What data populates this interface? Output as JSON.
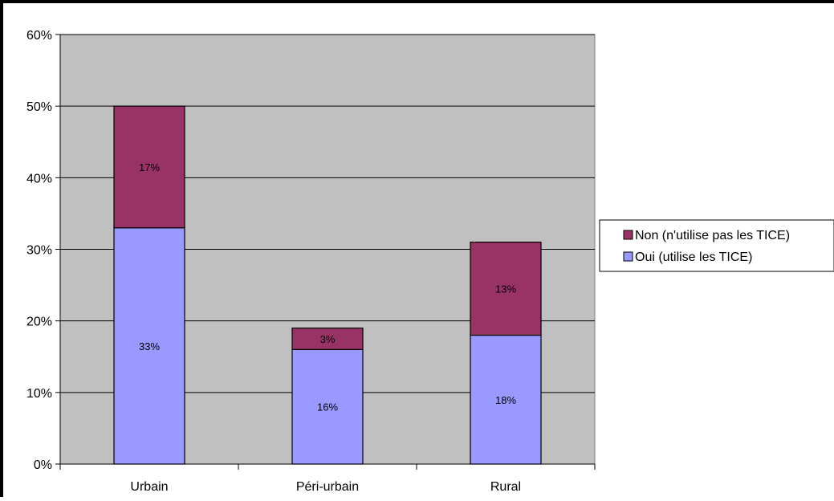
{
  "chart_data": {
    "type": "bar",
    "stacked": true,
    "title": "",
    "xlabel": "",
    "ylabel": "",
    "categories": [
      "Urbain",
      "Péri-urbain",
      "Rural"
    ],
    "series": [
      {
        "name": "Oui (utilise les TICE)",
        "values": [
          33,
          16,
          18
        ],
        "labels": [
          "33%",
          "16%",
          "18%"
        ],
        "color": "#9999ff"
      },
      {
        "name": "Non (n'utilise pas les TICE)",
        "values": [
          17,
          3,
          13
        ],
        "labels": [
          "17%",
          "3%",
          "13%"
        ],
        "color": "#993366"
      }
    ],
    "ylim": [
      0,
      60
    ],
    "yticks": [
      0,
      10,
      20,
      30,
      40,
      50,
      60
    ],
    "ytick_labels": [
      "0%",
      "10%",
      "20%",
      "30%",
      "40%",
      "50%",
      "60%"
    ],
    "grid": true,
    "plot_background": "#c0c0c0",
    "legend_position": "right",
    "legend_order": [
      "Non (n'utilise pas les TICE)",
      "Oui (utilise les TICE)"
    ]
  }
}
